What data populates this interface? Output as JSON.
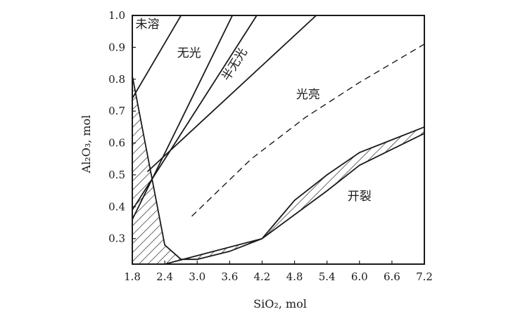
{
  "chart_data": {
    "type": "line",
    "title": "",
    "xlabel": "SiO₂, mol",
    "ylabel": "Al₂O₃, mol",
    "xlim": [
      1.8,
      7.2
    ],
    "ylim": [
      0.22,
      1.0
    ],
    "x_ticks": [
      "1.8",
      "2.4",
      "3.0",
      "3.6",
      "4.2",
      "4.8",
      "5.4",
      "6.0",
      "6.6",
      "7.2"
    ],
    "y_ticks": [
      "0.3",
      "0.4",
      "0.5",
      "0.6",
      "0.7",
      "0.8",
      "0.9",
      "1.0"
    ],
    "grid": false,
    "legend": "none",
    "region_labels": [
      {
        "text": "未溶",
        "x": 2.08,
        "y": 0.96
      },
      {
        "text": "无光",
        "x": 2.85,
        "y": 0.87
      },
      {
        "text": "半无光",
        "x": 3.75,
        "y": 0.84,
        "rotate": -58
      },
      {
        "text": "光亮",
        "x": 5.05,
        "y": 0.74
      },
      {
        "text": "开裂",
        "x": 6.0,
        "y": 0.42
      }
    ],
    "series": [
      {
        "style": "solid",
        "points": [
          [
            1.8,
            0.74
          ],
          [
            2.7,
            1.0
          ]
        ]
      },
      {
        "style": "solid",
        "points": [
          [
            1.8,
            0.36
          ],
          [
            3.65,
            1.0
          ]
        ]
      },
      {
        "style": "solid",
        "points": [
          [
            1.8,
            0.39
          ],
          [
            4.1,
            1.0
          ]
        ]
      },
      {
        "style": "solid",
        "points": [
          [
            2.08,
            0.51
          ],
          [
            5.2,
            1.0
          ]
        ]
      },
      {
        "style": "dashed",
        "points": [
          [
            2.9,
            0.37
          ],
          [
            4.0,
            0.55
          ],
          [
            5.0,
            0.68
          ],
          [
            6.0,
            0.79
          ],
          [
            6.6,
            0.85
          ],
          [
            7.2,
            0.91
          ]
        ]
      },
      {
        "style": "solid",
        "points": [
          [
            1.8,
            0.81
          ],
          [
            2.4,
            0.28
          ],
          [
            2.7,
            0.235
          ],
          [
            3.0,
            0.235
          ],
          [
            3.6,
            0.26
          ],
          [
            4.2,
            0.3
          ],
          [
            4.8,
            0.42
          ],
          [
            5.4,
            0.5
          ],
          [
            6.0,
            0.57
          ],
          [
            6.6,
            0.61
          ],
          [
            7.2,
            0.65
          ]
        ]
      },
      {
        "style": "solid",
        "points": [
          [
            2.4,
            0.22
          ],
          [
            4.2,
            0.3
          ],
          [
            5.4,
            0.45
          ],
          [
            6.0,
            0.53
          ],
          [
            6.6,
            0.58
          ],
          [
            7.2,
            0.63
          ]
        ]
      }
    ],
    "hatched_regions": [
      {
        "name": "lower-left",
        "points": [
          [
            1.8,
            0.81
          ],
          [
            2.4,
            0.28
          ],
          [
            2.7,
            0.235
          ],
          [
            3.0,
            0.235
          ],
          [
            3.6,
            0.26
          ],
          [
            4.2,
            0.3
          ],
          [
            2.4,
            0.22
          ],
          [
            1.8,
            0.22
          ]
        ]
      },
      {
        "name": "cracking",
        "points": [
          [
            4.2,
            0.3
          ],
          [
            4.8,
            0.42
          ],
          [
            5.4,
            0.5
          ],
          [
            6.0,
            0.57
          ],
          [
            6.6,
            0.61
          ],
          [
            7.2,
            0.65
          ],
          [
            7.2,
            0.63
          ],
          [
            6.6,
            0.58
          ],
          [
            6.0,
            0.53
          ],
          [
            5.4,
            0.45
          ]
        ]
      }
    ]
  }
}
